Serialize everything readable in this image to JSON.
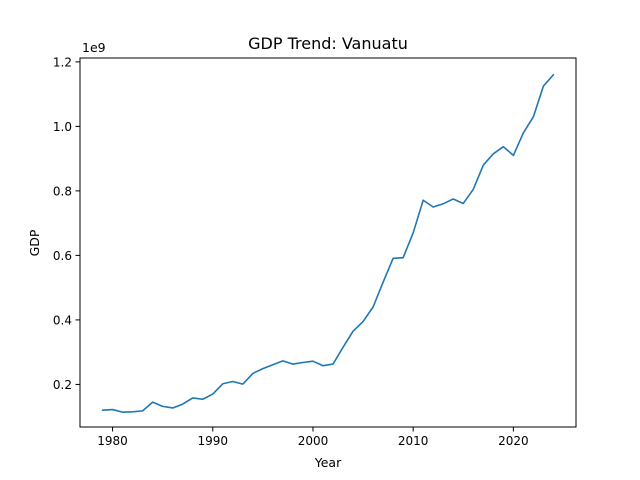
{
  "chart_data": {
    "type": "line",
    "title": "GDP Trend: Vanuatu",
    "xlabel": "Year",
    "ylabel": "GDP",
    "y_scale_label": "1e9",
    "xlim": [
      1976.75,
      2026.25
    ],
    "ylim": [
      0.068,
      1.212
    ],
    "x_ticks": [
      1980,
      1990,
      2000,
      2010,
      2020
    ],
    "x_tick_labels": [
      "1980",
      "1990",
      "2000",
      "2010",
      "2020"
    ],
    "y_ticks": [
      0.2,
      0.4,
      0.6,
      0.8,
      1.0,
      1.2
    ],
    "y_tick_labels": [
      "0.2",
      "0.4",
      "0.6",
      "0.8",
      "1.0",
      "1.2"
    ],
    "grid": false,
    "legend": "none",
    "line_color": "#1f77b4",
    "series": [
      {
        "x": [
          1979,
          1980,
          1981,
          1982,
          1983,
          1984,
          1985,
          1986,
          1987,
          1988,
          1989,
          1990,
          1991,
          1992,
          1993,
          1994,
          1995,
          1996,
          1997,
          1998,
          1999,
          2000,
          2001,
          2002,
          2003,
          2004,
          2005,
          2006,
          2007,
          2008,
          2009,
          2010,
          2011,
          2012,
          2013,
          2014,
          2015,
          2016,
          2017,
          2018,
          2019,
          2020,
          2021,
          2022,
          2023,
          2024
        ],
        "values": [
          0.12,
          0.122,
          0.114,
          0.115,
          0.118,
          0.145,
          0.132,
          0.127,
          0.139,
          0.158,
          0.154,
          0.17,
          0.202,
          0.209,
          0.201,
          0.234,
          0.249,
          0.261,
          0.273,
          0.263,
          0.268,
          0.272,
          0.258,
          0.263,
          0.315,
          0.365,
          0.395,
          0.44,
          0.517,
          0.591,
          0.593,
          0.67,
          0.771,
          0.75,
          0.76,
          0.775,
          0.761,
          0.805,
          0.88,
          0.915,
          0.937,
          0.91,
          0.98,
          1.03,
          1.125,
          1.16
        ]
      }
    ]
  }
}
